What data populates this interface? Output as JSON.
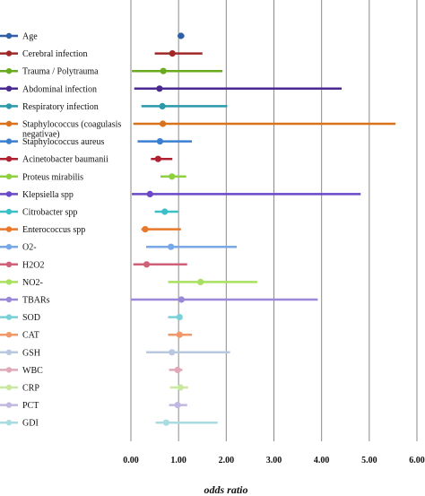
{
  "chart_data": {
    "type": "forest",
    "xlabel": "odds ratio",
    "xlim": [
      0,
      6
    ],
    "ticks": [
      0,
      1,
      2,
      3,
      4,
      5,
      6
    ],
    "tick_labels": [
      "0.00",
      "1.00",
      "2.00",
      "3.00",
      "4.00",
      "5.00",
      "6.00"
    ],
    "reference_line": 1,
    "grid": true,
    "legend": "left",
    "series": [
      {
        "name": "Age",
        "or": 1.05,
        "lo": 0.98,
        "hi": 1.12,
        "color": "#2e5fa8"
      },
      {
        "name": "Cerebral infection",
        "or": 0.87,
        "lo": 0.5,
        "hi": 1.5,
        "color": "#a02828"
      },
      {
        "name": "Trauma / Polytrauma",
        "or": 0.68,
        "lo": 0.02,
        "hi": 1.92,
        "color": "#6aaa1f"
      },
      {
        "name": "Abdominal infection",
        "or": 0.6,
        "lo": 0.07,
        "hi": 4.42,
        "color": "#4a2a90"
      },
      {
        "name": "Respiratory infection",
        "or": 0.66,
        "lo": 0.22,
        "hi": 2.02,
        "color": "#2a9aaa"
      },
      {
        "name": "Staphylococcus (coagulasis negativae)",
        "or": 0.67,
        "lo": 0.05,
        "hi": 5.55,
        "color": "#d9721a"
      },
      {
        "name": "Staphylococcus aureus",
        "or": 0.61,
        "lo": 0.14,
        "hi": 1.28,
        "color": "#3b7fd0"
      },
      {
        "name": "Acinetobacter baumanii",
        "or": 0.57,
        "lo": 0.42,
        "hi": 0.87,
        "color": "#b02030"
      },
      {
        "name": "Proteus mirabilis",
        "or": 0.86,
        "lo": 0.62,
        "hi": 1.16,
        "color": "#8ed040"
      },
      {
        "name": "Klepsiella spp",
        "or": 0.4,
        "lo": 0.02,
        "hi": 4.82,
        "color": "#6a48c8"
      },
      {
        "name": "Citrobacter spp",
        "or": 0.71,
        "lo": 0.5,
        "hi": 0.99,
        "color": "#3cc0c8"
      },
      {
        "name": "Enterococcus spp",
        "or": 0.3,
        "lo": 0.22,
        "hi": 1.05,
        "color": "#e8782a"
      },
      {
        "name": "O2-",
        "or": 0.84,
        "lo": 0.32,
        "hi": 2.22,
        "color": "#78a8e8"
      },
      {
        "name": "H2O2",
        "or": 0.33,
        "lo": 0.05,
        "hi": 1.18,
        "color": "#d06078"
      },
      {
        "name": "NO2-",
        "or": 1.46,
        "lo": 0.78,
        "hi": 2.65,
        "color": "#a8e060"
      },
      {
        "name": "TBARs",
        "or": 1.06,
        "lo": 0.0,
        "hi": 3.92,
        "color": "#9a88d8"
      },
      {
        "name": "SOD",
        "or": 1.02,
        "lo": 0.78,
        "hi": 1.05,
        "color": "#78d0d8"
      },
      {
        "name": "CAT",
        "or": 1.02,
        "lo": 0.78,
        "hi": 1.28,
        "color": "#f09868"
      },
      {
        "name": "GSH",
        "or": 0.86,
        "lo": 0.32,
        "hi": 2.08,
        "color": "#b8c8e0"
      },
      {
        "name": "WBC",
        "or": 0.98,
        "lo": 0.8,
        "hi": 1.08,
        "color": "#e0a8b8"
      },
      {
        "name": "CRP",
        "or": 1.04,
        "lo": 0.82,
        "hi": 1.2,
        "color": "#c8e8a0"
      },
      {
        "name": "PCT",
        "or": 0.98,
        "lo": 0.8,
        "hi": 1.18,
        "color": "#c0b8e0"
      },
      {
        "name": "GDI",
        "or": 0.74,
        "lo": 0.52,
        "hi": 1.82,
        "color": "#a8dce0"
      }
    ]
  }
}
